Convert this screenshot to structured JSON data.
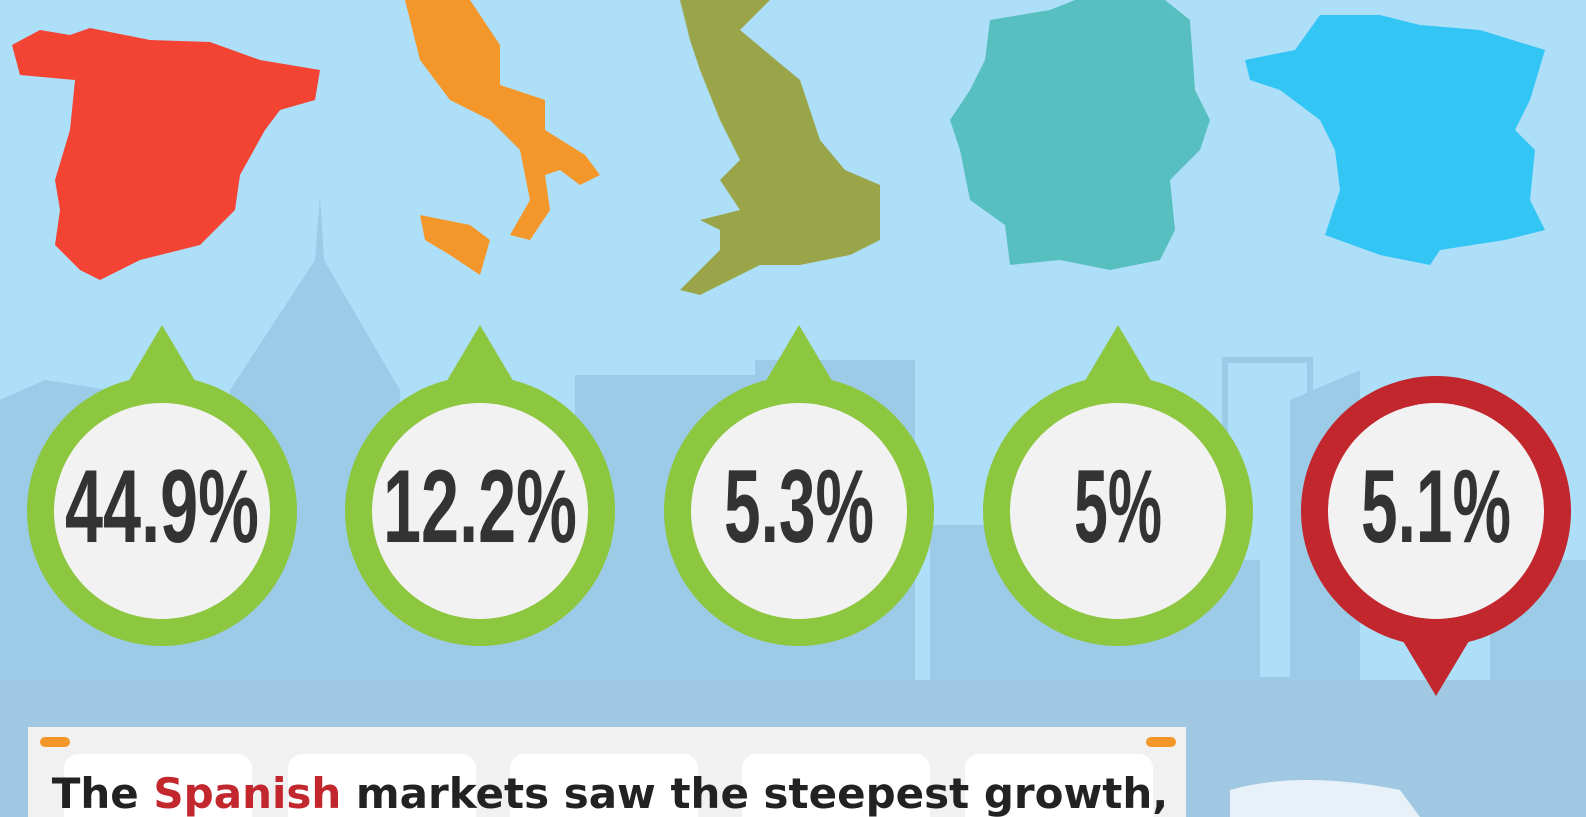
{
  "badges": [
    {
      "label": "44.9%",
      "color": "#8dc63f",
      "pointer": "up"
    },
    {
      "label": "12.2%",
      "color": "#8dc63f",
      "pointer": "up"
    },
    {
      "label": "5.3%",
      "color": "#8dc63f",
      "pointer": "up"
    },
    {
      "label": "5%",
      "color": "#8dc63f",
      "pointer": "up"
    },
    {
      "label": "5.1%",
      "color": "#c1272d",
      "pointer": "down"
    }
  ],
  "caption": {
    "parts": [
      "The",
      "Spanish",
      "markets saw the steepest growth,"
    ]
  }
}
